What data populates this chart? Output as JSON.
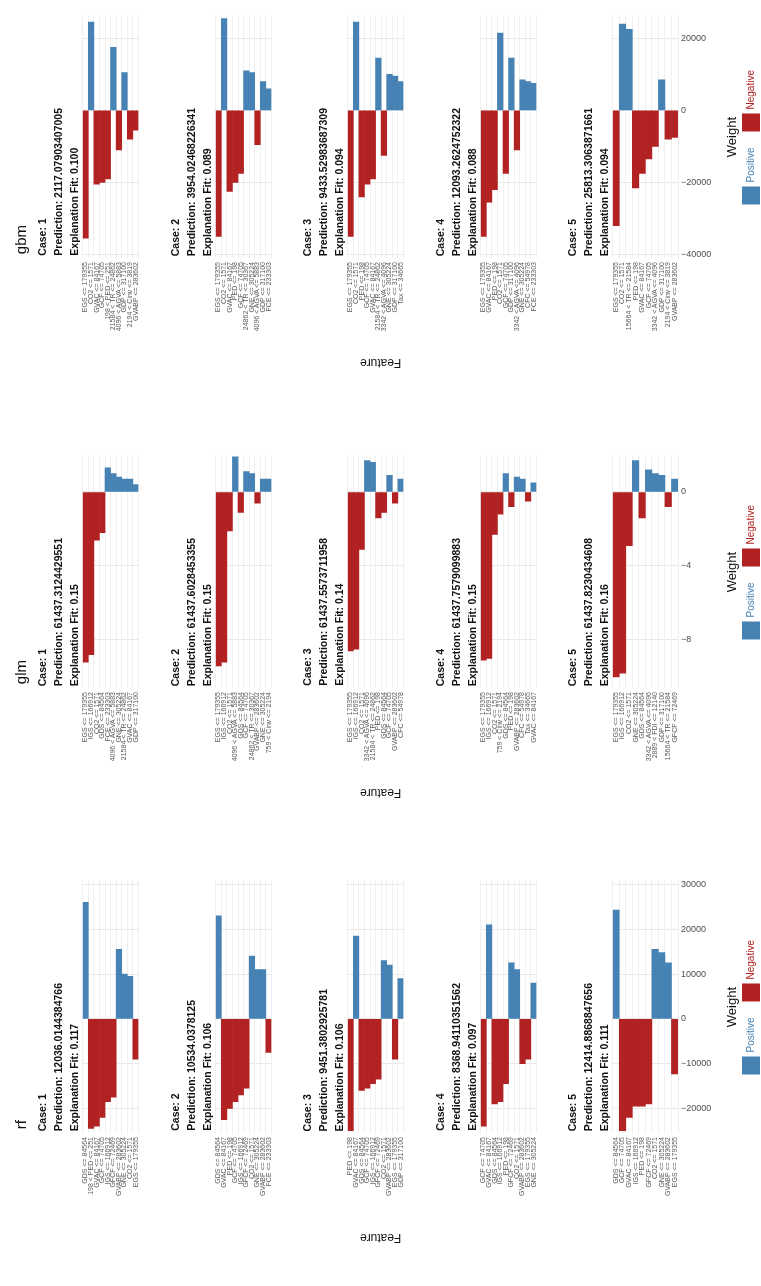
{
  "chart_data": [
    {
      "type": "bar",
      "grid": true,
      "tick_labels": "x",
      "title": "Case: 1",
      "subtitle": "Prediction: 12036.0144384766",
      "annotations": [
        "Explanation Fit: 0.117",
        "rf"
      ],
      "categories": [
        "GDS <= 84564",
        "198 < PED <= 251",
        "GVAC <= 84167",
        "GCF <= 74705",
        "IGS <= 166912",
        "GFCF <= 72469",
        "GVABP <= 283602",
        "GNE <= 305224",
        "CO2 <= 1571",
        "EGS <= 179355"
      ],
      "series": [
        {
          "color": "#4682b4",
          "values": [
            26000,
            null,
            null,
            null,
            null,
            null,
            15500,
            10000,
            9500,
            null
          ]
        },
        {
          "color": "#b22222",
          "values": [
            null,
            -24500,
            -24000,
            -22000,
            -18500,
            -17500,
            null,
            null,
            null,
            -9000
          ]
        }
      ],
      "ylim": [
        -25500,
        31000
      ],
      "yticks": [
        {
          "value": -20000,
          "label": null
        },
        {
          "value": -10000,
          "label": null
        },
        {
          "value": 0,
          "label": null
        },
        {
          "value": 10000,
          "label": null
        },
        {
          "value": 20000,
          "label": null
        },
        {
          "value": 30000,
          "label": null
        }
      ]
    },
    {
      "type": "bar",
      "grid": true,
      "tick_labels": "x",
      "title": "Case: 2",
      "subtitle": "Prediction: 10534.0378125",
      "annotations": [
        "Explanation Fit: 0.106"
      ],
      "categories": [
        "GDS <= 84564",
        "GVAC <= 84167",
        "PED <= 198",
        "GCF <= 74705",
        "IGS <= 166912",
        "GFCF <= 72469",
        "CO2 <= 1571",
        "GNE <= 305224",
        "GVABP <= 283602",
        "FCE <= 233303"
      ],
      "series": [
        {
          "color": "#4682b4",
          "values": [
            23000,
            null,
            null,
            null,
            null,
            null,
            14000,
            11000,
            11000,
            null
          ]
        },
        {
          "color": "#b22222",
          "values": [
            null,
            -22500,
            -20000,
            -18500,
            -17000,
            -15500,
            null,
            null,
            null,
            -7500
          ]
        }
      ],
      "ylim": [
        -25500,
        31000
      ],
      "yticks": [
        {
          "value": -20000,
          "label": null
        },
        {
          "value": -10000,
          "label": null
        },
        {
          "value": 0,
          "label": null
        },
        {
          "value": 10000,
          "label": null
        },
        {
          "value": 20000,
          "label": null
        },
        {
          "value": 30000,
          "label": null
        }
      ]
    },
    {
      "type": "bar",
      "grid": true,
      "tick_labels": "x",
      "xlabel": "Feature",
      "title": "Case: 3",
      "subtitle": "Prediction: 9451.3802925781",
      "annotations": [
        "Explanation Fit: 0.106"
      ],
      "categories": [
        "PED <= 198",
        "GVAC <= 84167",
        "GDS <= 84564",
        "GCF <= 74705",
        "IGS <= 166912",
        "GFCF <= 72469",
        "CO2 <= 1571",
        "GVABP <= 283602",
        "EGS <= 179355",
        "GDP <= 317100"
      ],
      "series": [
        {
          "color": "#4682b4",
          "values": [
            null,
            18500,
            null,
            null,
            null,
            null,
            13000,
            12000,
            null,
            9000
          ]
        },
        {
          "color": "#b22222",
          "values": [
            -25000,
            null,
            -16000,
            -15500,
            -14500,
            -13500,
            null,
            null,
            -9000,
            null
          ]
        }
      ],
      "ylim": [
        -25500,
        31000
      ],
      "yticks": [
        {
          "value": -20000,
          "label": null
        },
        {
          "value": -10000,
          "label": null
        },
        {
          "value": 0,
          "label": null
        },
        {
          "value": 10000,
          "label": null
        },
        {
          "value": 20000,
          "label": null
        },
        {
          "value": 30000,
          "label": null
        }
      ]
    },
    {
      "type": "bar",
      "grid": true,
      "tick_labels": "x",
      "title": "Case: 4",
      "subtitle": "Prediction: 8368.94110351562",
      "annotations": [
        "Explanation Fit: 0.097"
      ],
      "categories": [
        "GCF <= 74705",
        "GVAC <= 84167",
        "GDS <= 84564",
        "IGS <= 166912",
        "PED <= 198",
        "GFCF <= 72469",
        "CO2 <= 1571",
        "GVABP <= 283602",
        "EGS <= 179355",
        "GNE <= 305224"
      ],
      "series": [
        {
          "color": "#4682b4",
          "values": [
            null,
            21000,
            null,
            null,
            null,
            12500,
            11000,
            null,
            null,
            8000
          ]
        },
        {
          "color": "#b22222",
          "values": [
            -24000,
            null,
            -19000,
            -18500,
            -14500,
            null,
            null,
            -10000,
            -9000,
            null
          ]
        }
      ],
      "ylim": [
        -25500,
        31000
      ],
      "yticks": [
        {
          "value": -20000,
          "label": null
        },
        {
          "value": -10000,
          "label": null
        },
        {
          "value": 0,
          "label": null
        },
        {
          "value": 10000,
          "label": null
        },
        {
          "value": 20000,
          "label": null
        },
        {
          "value": 30000,
          "label": null
        }
      ]
    },
    {
      "type": "bar",
      "grid": true,
      "legend": "right",
      "ylabel": "Weight",
      "title": "Case: 5",
      "subtitle": "Prediction: 12414.8868847656",
      "annotations": [
        "Explanation Fit: 0.111"
      ],
      "categories": [
        "GDS <= 84564",
        "GCF <= 74705",
        "GVAC <= 84167",
        "IGS <= 166912",
        "PED <= 198",
        "GFCF <= 72469",
        "CO2 <= 1571",
        "GNE <= 305224",
        "GVABP <= 283602",
        "EGS <= 179355"
      ],
      "series": [
        {
          "name": "Positive",
          "color": "#4682b4",
          "values": [
            24300,
            null,
            null,
            null,
            null,
            null,
            15500,
            14800,
            12500,
            null
          ]
        },
        {
          "name": "Negative",
          "color": "#b22222",
          "values": [
            null,
            -25000,
            -22000,
            -19500,
            -19500,
            -19000,
            null,
            null,
            null,
            -12300
          ]
        }
      ],
      "ylim": [
        -25500,
        31000
      ],
      "yticks": [
        {
          "value": -20000,
          "label": "−20000"
        },
        {
          "value": -10000,
          "label": "−10000"
        },
        0,
        10000,
        20000,
        30000
      ]
    },
    {
      "type": "bar",
      "grid": true,
      "tick_labels": "x",
      "title": "Case: 1",
      "subtitle": "Prediction: 61437.3124429551",
      "annotations": [
        "Explanation Fit: 0.15",
        "glm"
      ],
      "categories": [
        "EGS <= 179355",
        "IGS <= 166912",
        "CO2 <= 1571",
        "GDS <= 84564",
        "FCE <= 233303",
        "4096 < AGVA <= 5883",
        "GNE <= 305224",
        "21584 < TR <= 24862",
        "GVAC <= 84167",
        "GDP <= 317100"
      ],
      "series": [
        {
          "color": "#4682b4",
          "values": [
            null,
            null,
            null,
            null,
            1.3,
            1.0,
            0.8,
            0.7,
            0.7,
            0.4
          ]
        },
        {
          "color": "#b22222",
          "values": [
            -9.2,
            -8.8,
            -2.6,
            -2.2,
            null,
            null,
            null,
            null,
            null,
            null
          ]
        }
      ],
      "ylim": [
        -10.6,
        2.0
      ],
      "yticks": [
        {
          "value": -8,
          "label": null
        },
        {
          "value": -4,
          "label": null
        },
        {
          "value": 0,
          "label": null
        }
      ]
    },
    {
      "type": "bar",
      "grid": true,
      "tick_labels": "x",
      "title": "Case: 2",
      "subtitle": "Prediction: 61437.6028453355",
      "annotations": [
        "Explanation Fit: 0.15"
      ],
      "categories": [
        "EGS <= 179355",
        "IGS <= 166912",
        "CO2 <= 1571",
        "4096 < AGVA <= 5883",
        "GDS <= 84564",
        "GCF <= 74705",
        "24862 < TR <= 30367",
        "GVABP <= 283602",
        "GNE <= 305224",
        "759 < Cinv <= 2194"
      ],
      "series": [
        {
          "color": "#4682b4",
          "values": [
            null,
            null,
            null,
            1.9,
            null,
            1.1,
            1.0,
            null,
            0.7,
            0.7
          ]
        },
        {
          "color": "#b22222",
          "values": [
            -9.4,
            -9.2,
            -2.1,
            null,
            -1.1,
            null,
            null,
            -0.6,
            null,
            null
          ]
        }
      ],
      "ylim": [
        -10.6,
        2.0
      ],
      "yticks": [
        {
          "value": -8,
          "label": null
        },
        {
          "value": -4,
          "label": null
        },
        {
          "value": 0,
          "label": null
        }
      ]
    },
    {
      "type": "bar",
      "grid": true,
      "tick_labels": "x",
      "xlabel": "Feature",
      "title": "Case: 3",
      "subtitle": "Prediction: 61437.5573711958",
      "annotations": [
        "Explanation Fit: 0.14"
      ],
      "categories": [
        "EGS <= 179355",
        "IGS <= 166912",
        "CO2 <= 1571",
        "3342 < AGVA <= 4096",
        "21584 < TR <= 24862",
        "PED <= 198",
        "GDS <= 84564",
        "GCF <= 74705",
        "GVABP <= 283602",
        "CFC <= 54978"
      ],
      "series": [
        {
          "color": "#4682b4",
          "values": [
            null,
            null,
            null,
            1.7,
            1.6,
            null,
            null,
            0.9,
            null,
            0.7
          ]
        },
        {
          "color": "#b22222",
          "values": [
            -8.6,
            -8.5,
            -3.1,
            null,
            null,
            -1.4,
            -1.1,
            null,
            -0.6,
            null
          ]
        }
      ],
      "ylim": [
        -10.6,
        2.0
      ],
      "yticks": [
        {
          "value": -8,
          "label": null
        },
        {
          "value": -4,
          "label": null
        },
        {
          "value": 0,
          "label": null
        }
      ]
    },
    {
      "type": "bar",
      "grid": true,
      "tick_labels": "x",
      "title": "Case: 4",
      "subtitle": "Prediction: 61437.7579099883",
      "annotations": [
        "Explanation Fit: 0.15"
      ],
      "categories": [
        "EGS <= 179355",
        "IGS <= 166912",
        "CO2 <= 1571",
        "759 < Cinv <= 2194",
        "GDS <= 84564",
        "PED <= 198",
        "GVABP <= 283602",
        "CFC <= 54978",
        "Tax <= 34665",
        "GVAC <= 84167"
      ],
      "series": [
        {
          "color": "#4682b4",
          "values": [
            null,
            null,
            null,
            null,
            1.0,
            null,
            0.8,
            0.7,
            null,
            0.5
          ]
        },
        {
          "color": "#b22222",
          "values": [
            -9.1,
            -9.0,
            -2.3,
            -1.2,
            null,
            -0.8,
            null,
            null,
            -0.5,
            null
          ]
        }
      ],
      "ylim": [
        -10.6,
        2.0
      ],
      "yticks": [
        {
          "value": -8,
          "label": null
        },
        {
          "value": -4,
          "label": null
        },
        {
          "value": 0,
          "label": null
        }
      ]
    },
    {
      "type": "bar",
      "grid": true,
      "legend": "right",
      "ylabel": "Weight",
      "title": "Case: 5",
      "subtitle": "Prediction: 61437.8230434608",
      "annotations": [
        "Explanation Fit: 0.16"
      ],
      "categories": [
        "EGS <= 179355",
        "IGS <= 166912",
        "CO2 <= 1571",
        "GNE <= 305224",
        "GDS <= 84564",
        "3342 < AGVA <= 4096",
        "2889 < FDI <= 12140",
        "GDP <= 317100",
        "15664 < TR <= 21584",
        "GFCF <= 72469"
      ],
      "series": [
        {
          "name": "Positive",
          "color": "#4682b4",
          "values": [
            null,
            null,
            null,
            1.7,
            null,
            1.2,
            1.0,
            0.9,
            null,
            0.7
          ]
        },
        {
          "name": "Negative",
          "color": "#b22222",
          "values": [
            -10.0,
            -9.8,
            -2.9,
            null,
            -1.4,
            null,
            null,
            null,
            -0.8,
            null
          ]
        }
      ],
      "ylim": [
        -10.6,
        2.0
      ],
      "yticks": [
        {
          "value": -8,
          "label": "−8"
        },
        {
          "value": -4,
          "label": "−4"
        },
        0
      ]
    },
    {
      "type": "bar",
      "grid": true,
      "tick_labels": "x",
      "title": "Case: 1",
      "subtitle": "Prediction: 2117.07903407005",
      "annotations": [
        "Explanation Fit: 0.100",
        "gbm"
      ],
      "categories": [
        "EGS <= 179355",
        "CO2 <= 1571",
        "GVAC <= 84167",
        "GCF <= 74705",
        "198 < PED <= 251",
        "21584 < TR <= 24862",
        "4096 < AGVA <= 5883",
        "GDP <= 317100",
        "2194 < Cinv <= 3819",
        "GVABP <= 283602"
      ],
      "series": [
        {
          "color": "#4682b4",
          "values": [
            null,
            24500,
            null,
            null,
            null,
            17500,
            null,
            10500,
            null,
            null
          ]
        },
        {
          "color": "#b22222",
          "values": [
            -35500,
            null,
            -20500,
            -20000,
            -19000,
            null,
            -11000,
            null,
            -8000,
            -5500
          ]
        }
      ],
      "ylim": [
        -41000,
        26500
      ],
      "yticks": [
        {
          "value": -40000,
          "label": null
        },
        {
          "value": -20000,
          "label": null
        },
        {
          "value": 0,
          "label": null
        },
        {
          "value": 20000,
          "label": null
        }
      ]
    },
    {
      "type": "bar",
      "grid": true,
      "tick_labels": "x",
      "title": "Case: 2",
      "subtitle": "Prediction: 3954.02468226341",
      "annotations": [
        "Explanation Fit: 0.089"
      ],
      "categories": [
        "EGS <= 179355",
        "CO2 <= 1571",
        "GVAC <= 84167",
        "PED <= 198",
        "GCF <= 74705",
        "24862 < TR <= 30367",
        "GNE <= 305224",
        "4096 < AGVA <= 5883",
        "GDP <= 317100",
        "FCE <= 233303"
      ],
      "series": [
        {
          "color": "#4682b4",
          "values": [
            null,
            25500,
            null,
            null,
            null,
            11000,
            10500,
            null,
            8000,
            6000
          ]
        },
        {
          "color": "#b22222",
          "values": [
            -35000,
            null,
            -22500,
            -20000,
            -17500,
            null,
            null,
            -9500,
            null,
            null
          ]
        }
      ],
      "ylim": [
        -41000,
        26500
      ],
      "yticks": [
        {
          "value": -40000,
          "label": null
        },
        {
          "value": -20000,
          "label": null
        },
        {
          "value": 0,
          "label": null
        },
        {
          "value": 20000,
          "label": null
        }
      ]
    },
    {
      "type": "bar",
      "grid": true,
      "tick_labels": "x",
      "xlabel": "Feature",
      "title": "Case: 3",
      "subtitle": "Prediction: 9433.52983687309",
      "annotations": [
        "Explanation Fit: 0.094"
      ],
      "categories": [
        "EGS <= 179355",
        "CO2 <= 1571",
        "PED <= 198",
        "GCF <= 74705",
        "GVAC <= 84167",
        "21584 < TR <= 24862",
        "3342 < AGVA <= 4096",
        "GNE <= 305224",
        "GDP <= 317100",
        "Tax <= 34665"
      ],
      "series": [
        {
          "color": "#4682b4",
          "values": [
            null,
            24500,
            null,
            null,
            null,
            14500,
            null,
            10000,
            9500,
            8000
          ]
        },
        {
          "color": "#b22222",
          "values": [
            -35000,
            null,
            -24000,
            -20500,
            -19000,
            null,
            -12500,
            null,
            null,
            null
          ]
        }
      ],
      "ylim": [
        -41000,
        26500
      ],
      "yticks": [
        {
          "value": -40000,
          "label": null
        },
        {
          "value": -20000,
          "label": null
        },
        {
          "value": 0,
          "label": null
        },
        {
          "value": 20000,
          "label": null
        }
      ]
    },
    {
      "type": "bar",
      "grid": true,
      "tick_labels": "x",
      "title": "Case: 4",
      "subtitle": "Prediction: 12093.2624752322",
      "annotations": [
        "Explanation Fit: 0.088"
      ],
      "categories": [
        "EGS <= 179355",
        "GVAC <= 84167",
        "PED <= 198",
        "CO2 <= 1571",
        "GCF <= 74705",
        "GDP <= 317100",
        "3342 < AGVA <= 4096",
        "GNE <= 305224",
        "CFC <= 54978",
        "FCE <= 233303"
      ],
      "series": [
        {
          "color": "#4682b4",
          "values": [
            null,
            null,
            null,
            21500,
            null,
            14500,
            null,
            8500,
            8000,
            7500
          ]
        },
        {
          "color": "#b22222",
          "values": [
            -35000,
            -25500,
            -22000,
            null,
            -17500,
            null,
            -11000,
            null,
            null,
            null
          ]
        }
      ],
      "ylim": [
        -41000,
        26500
      ],
      "yticks": [
        {
          "value": -40000,
          "label": null
        },
        {
          "value": -20000,
          "label": null
        },
        {
          "value": 0,
          "label": null
        },
        {
          "value": 20000,
          "label": null
        }
      ]
    },
    {
      "type": "bar",
      "grid": true,
      "legend": "right",
      "ylabel": "Weight",
      "title": "Case: 5",
      "subtitle": "Prediction: 25813.3063871661",
      "annotations": [
        "Explanation Fit: 0.094"
      ],
      "categories": [
        "EGS <= 179355",
        "CO2 <= 1571",
        "15664 < TR <= 21584",
        "PED <= 198",
        "GVAC <= 84167",
        "GCF <= 74705",
        "3342 < AGVA <= 4096",
        "GDP <= 317100",
        "2194 < Cinv <= 3819",
        "GVABP <= 283602"
      ],
      "series": [
        {
          "name": "Positive",
          "color": "#4682b4",
          "values": [
            null,
            24000,
            22500,
            null,
            null,
            null,
            null,
            8500,
            null,
            null
          ]
        },
        {
          "name": "Negative",
          "color": "#b22222",
          "values": [
            -32000,
            null,
            null,
            -21500,
            -17500,
            -13500,
            -10000,
            null,
            -8000,
            -7500
          ]
        }
      ],
      "ylim": [
        -41000,
        26500
      ],
      "yticks": [
        {
          "value": -40000,
          "label": "−40000"
        },
        {
          "value": -20000,
          "label": "−20000"
        },
        0,
        20000
      ]
    }
  ]
}
